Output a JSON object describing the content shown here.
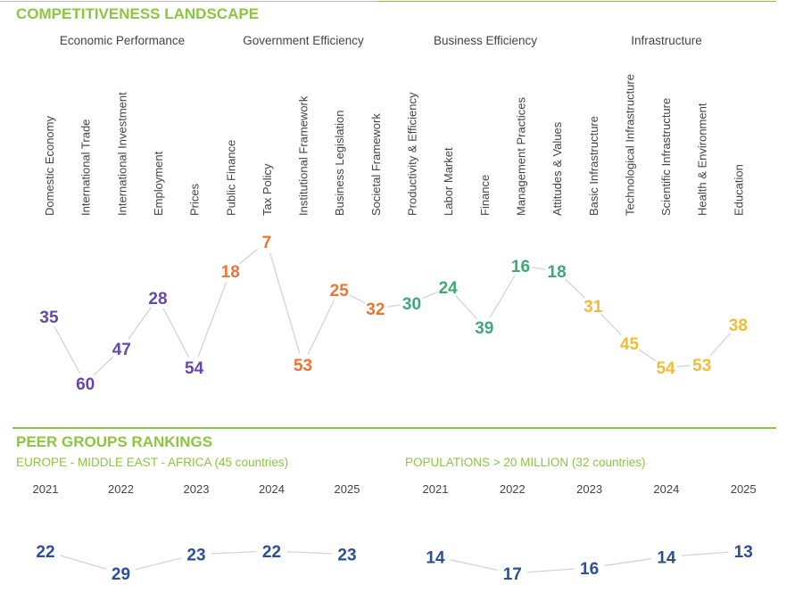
{
  "landscape": {
    "title": "COMPETITIVENESS LANDSCAPE",
    "groups": [
      {
        "label": "Economic Performance",
        "color": "#6548a8"
      },
      {
        "label": "Government Efficiency",
        "color": "#ee7436"
      },
      {
        "label": "Business Efficiency",
        "color": "#3fa877"
      },
      {
        "label": "Infrastructure",
        "color": "#efbd3a"
      }
    ]
  },
  "peer": {
    "title": "PEER GROUPS RANKINGS",
    "panels": [
      {
        "title": "EUROPE - MIDDLE EAST - AFRICA (45 countries)"
      },
      {
        "title": "POPULATIONS > 20 MILLION (32 countries)"
      }
    ]
  },
  "chart_data": [
    {
      "type": "line",
      "title": "COMPETITIVENESS LANDSCAPE",
      "categories": [
        "Domestic Economy",
        "International Trade",
        "International Investment",
        "Employment",
        "Prices",
        "Public Finance",
        "Tax Policy",
        "Institutional Framework",
        "Business Legislation",
        "Societal Framework",
        "Productivity & Efficiency",
        "Labor Market",
        "Finance",
        "Management Practices",
        "Attitudes & Values",
        "Basic Infrastructure",
        "Technological Infrastructure",
        "Scientific Infrastructure",
        "Health & Environment",
        "Education"
      ],
      "values": [
        35,
        60,
        47,
        28,
        54,
        18,
        7,
        53,
        25,
        32,
        30,
        24,
        39,
        16,
        18,
        31,
        45,
        54,
        53,
        38
      ],
      "groups": [
        0,
        0,
        0,
        0,
        0,
        1,
        1,
        1,
        1,
        1,
        2,
        2,
        2,
        2,
        2,
        3,
        3,
        3,
        3,
        3
      ],
      "ylim": [
        0,
        67
      ],
      "y_inverted": true,
      "line_color": "#d4d4d4"
    },
    {
      "type": "line",
      "title": "EUROPE - MIDDLE EAST - AFRICA (45 countries)",
      "categories": [
        "2021",
        "2022",
        "2023",
        "2024",
        "2025"
      ],
      "values": [
        22,
        29,
        23,
        22,
        23
      ],
      "y_inverted": true,
      "color": "#2c4f96",
      "line_color": "#d4d4d4"
    },
    {
      "type": "line",
      "title": "POPULATIONS > 20 MILLION (32 countries)",
      "categories": [
        "2021",
        "2022",
        "2023",
        "2024",
        "2025"
      ],
      "values": [
        14,
        17,
        16,
        14,
        13
      ],
      "y_inverted": true,
      "color": "#2c4f96",
      "line_color": "#d4d4d4"
    }
  ]
}
